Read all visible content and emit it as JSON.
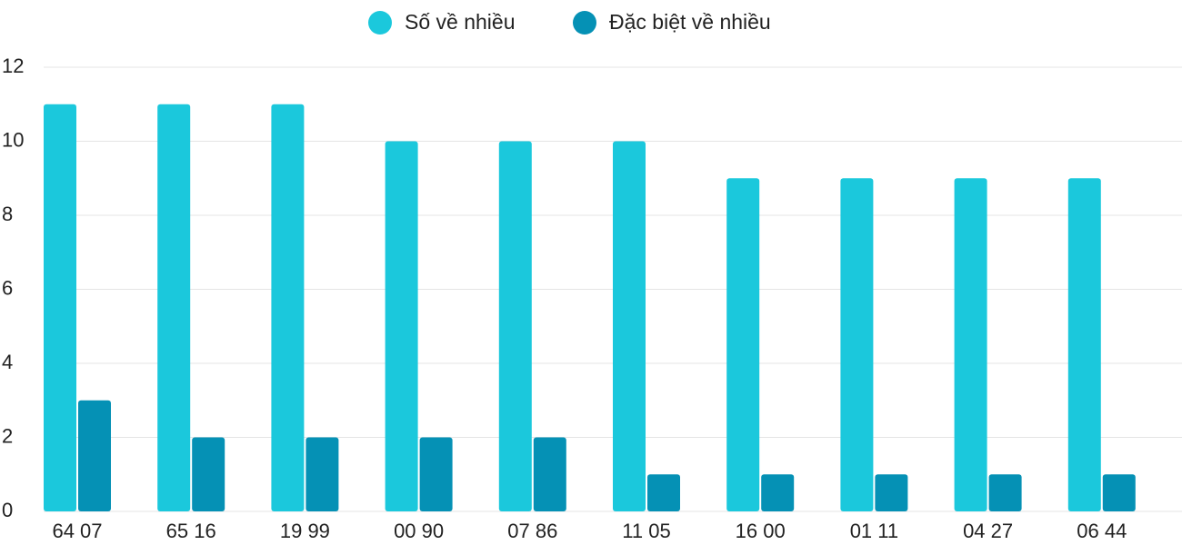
{
  "chart_data": {
    "type": "bar",
    "categories": [
      "64 07",
      "65 16",
      "19 99",
      "00 90",
      "07 86",
      "11 05",
      "16 00",
      "01 11",
      "04 27",
      "06 44"
    ],
    "series": [
      {
        "name": "Số về nhiều",
        "color": "#1bc8dc",
        "values": [
          11,
          11,
          11,
          10,
          10,
          10,
          9,
          9,
          9,
          9
        ]
      },
      {
        "name": "Đặc biệt về nhiều",
        "color": "#0591b5",
        "values": [
          3,
          2,
          2,
          2,
          2,
          1,
          1,
          1,
          1,
          1
        ]
      }
    ],
    "ylim": [
      0,
      12
    ],
    "yticks": [
      0,
      2,
      4,
      6,
      8,
      10,
      12
    ],
    "grid": true
  }
}
